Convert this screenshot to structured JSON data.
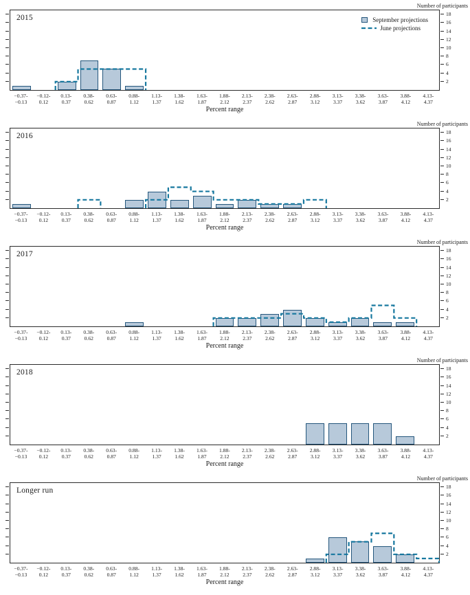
{
  "figure": {
    "y_axis_title": "Number of participants",
    "x_axis_label": "Percent range",
    "y_ticks": [
      2,
      4,
      6,
      8,
      10,
      12,
      14,
      16,
      18
    ],
    "y_max": 19,
    "legend": {
      "september_label": "September projections",
      "june_label": "June projections"
    },
    "colors": {
      "bar_fill": "#b7c9da",
      "bar_edge": "#24567c",
      "june_line": "#17789f",
      "axis": "#2b2b2b"
    }
  },
  "chart_data": [
    {
      "type": "bar",
      "title": "2015",
      "xlabel": "Percent range",
      "ylabel": "Number of participants",
      "ylim": [
        0,
        19
      ],
      "show_legend": true,
      "legend_position": "top-right",
      "grid": false,
      "categories": [
        "−0.37-\n−0.13",
        "−0.12-\n0.12",
        "0.13-\n0.37",
        "0.38-\n0.62",
        "0.63-\n0.87",
        "0.88-\n1.12",
        "1.13-\n1.37",
        "1.38-\n1.62",
        "1.63-\n1.87",
        "1.88-\n2.12",
        "2.13-\n2.37",
        "2.38-\n2.62",
        "2.63-\n2.87",
        "2.88-\n3.12",
        "3.13-\n3.37",
        "3.38-\n3.62",
        "3.63-\n3.87",
        "3.88-\n4.12",
        "4.13-\n4.37"
      ],
      "series": [
        {
          "name": "September projections",
          "style": "bar",
          "values": [
            1,
            0,
            2,
            7,
            5,
            1,
            0,
            0,
            0,
            0,
            0,
            0,
            0,
            0,
            0,
            0,
            0,
            0,
            0
          ]
        },
        {
          "name": "June projections",
          "style": "dashed-step",
          "values": [
            0,
            0,
            2,
            5,
            5,
            5,
            0,
            0,
            0,
            0,
            0,
            0,
            0,
            0,
            0,
            0,
            0,
            0,
            0
          ]
        }
      ]
    },
    {
      "type": "bar",
      "title": "2016",
      "xlabel": "Percent range",
      "ylabel": "Number of participants",
      "ylim": [
        0,
        19
      ],
      "show_legend": false,
      "grid": false,
      "categories": [
        "−0.37-\n−0.13",
        "−0.12-\n0.12",
        "0.13-\n0.37",
        "0.38-\n0.62",
        "0.63-\n0.87",
        "0.88-\n1.12",
        "1.13-\n1.37",
        "1.38-\n1.62",
        "1.63-\n1.87",
        "1.88-\n2.12",
        "2.13-\n2.37",
        "2.38-\n2.62",
        "2.63-\n2.87",
        "2.88-\n3.12",
        "3.13-\n3.37",
        "3.38-\n3.62",
        "3.63-\n3.87",
        "3.88-\n4.12",
        "4.13-\n4.37"
      ],
      "series": [
        {
          "name": "September projections",
          "style": "bar",
          "values": [
            1,
            0,
            0,
            0,
            0,
            2,
            4,
            2,
            3,
            1,
            2,
            1,
            1,
            0,
            0,
            0,
            0,
            0,
            0
          ]
        },
        {
          "name": "June projections",
          "style": "dashed-step",
          "values": [
            0,
            0,
            0,
            2,
            0,
            0,
            2,
            5,
            4,
            2,
            2,
            1,
            1,
            2,
            0,
            0,
            0,
            0,
            0
          ]
        }
      ]
    },
    {
      "type": "bar",
      "title": "2017",
      "xlabel": "Percent range",
      "ylabel": "Number of participants",
      "ylim": [
        0,
        19
      ],
      "show_legend": false,
      "grid": false,
      "categories": [
        "−0.37-\n−0.13",
        "−0.12-\n0.12",
        "0.13-\n0.37",
        "0.38-\n0.62",
        "0.63-\n0.87",
        "0.88-\n1.12",
        "1.13-\n1.37",
        "1.38-\n1.62",
        "1.63-\n1.87",
        "1.88-\n2.12",
        "2.13-\n2.37",
        "2.38-\n2.62",
        "2.63-\n2.87",
        "2.88-\n3.12",
        "3.13-\n3.37",
        "3.38-\n3.62",
        "3.63-\n3.87",
        "3.88-\n4.12",
        "4.13-\n4.37"
      ],
      "series": [
        {
          "name": "September projections",
          "style": "bar",
          "values": [
            0,
            0,
            0,
            0,
            0,
            1,
            0,
            0,
            0,
            2,
            2,
            3,
            4,
            2,
            1,
            2,
            1,
            1,
            0
          ]
        },
        {
          "name": "June projections",
          "style": "dashed-step",
          "values": [
            0,
            0,
            0,
            0,
            0,
            0,
            0,
            0,
            0,
            2,
            2,
            2,
            3,
            2,
            1,
            2,
            5,
            2,
            0
          ]
        }
      ]
    },
    {
      "type": "bar",
      "title": "2018",
      "xlabel": "Percent range",
      "ylabel": "Number of participants",
      "ylim": [
        0,
        19
      ],
      "show_legend": false,
      "grid": false,
      "categories": [
        "−0.37-\n−0.13",
        "−0.12-\n0.12",
        "0.13-\n0.37",
        "0.38-\n0.62",
        "0.63-\n0.87",
        "0.88-\n1.12",
        "1.13-\n1.37",
        "1.38-\n1.62",
        "1.63-\n1.87",
        "1.88-\n2.12",
        "2.13-\n2.37",
        "2.38-\n2.62",
        "2.63-\n2.87",
        "2.88-\n3.12",
        "3.13-\n3.37",
        "3.38-\n3.62",
        "3.63-\n3.87",
        "3.88-\n4.12",
        "4.13-\n4.37"
      ],
      "series": [
        {
          "name": "September projections",
          "style": "bar",
          "values": [
            0,
            0,
            0,
            0,
            0,
            0,
            0,
            0,
            0,
            0,
            0,
            0,
            0,
            5,
            5,
            5,
            5,
            2,
            0
          ]
        }
      ]
    },
    {
      "type": "bar",
      "title": "Longer run",
      "xlabel": "Percent range",
      "ylabel": "Number of participants",
      "ylim": [
        0,
        19
      ],
      "show_legend": false,
      "grid": false,
      "categories": [
        "−0.37-\n−0.13",
        "−0.12-\n0.12",
        "0.13-\n0.37",
        "0.38-\n0.62",
        "0.63-\n0.87",
        "0.88-\n1.12",
        "1.13-\n1.37",
        "1.38-\n1.62",
        "1.63-\n1.87",
        "1.88-\n2.12",
        "2.13-\n2.37",
        "2.38-\n2.62",
        "2.63-\n2.87",
        "2.88-\n3.12",
        "3.13-\n3.37",
        "3.38-\n3.62",
        "3.63-\n3.87",
        "3.88-\n4.12",
        "4.13-\n4.37"
      ],
      "series": [
        {
          "name": "September projections",
          "style": "bar",
          "values": [
            0,
            0,
            0,
            0,
            0,
            0,
            0,
            0,
            0,
            0,
            0,
            0,
            0,
            1,
            6,
            5,
            4,
            2,
            0
          ]
        },
        {
          "name": "June projections",
          "style": "dashed-step",
          "values": [
            0,
            0,
            0,
            0,
            0,
            0,
            0,
            0,
            0,
            0,
            0,
            0,
            0,
            0,
            2,
            5,
            7,
            2,
            1
          ]
        }
      ]
    }
  ]
}
